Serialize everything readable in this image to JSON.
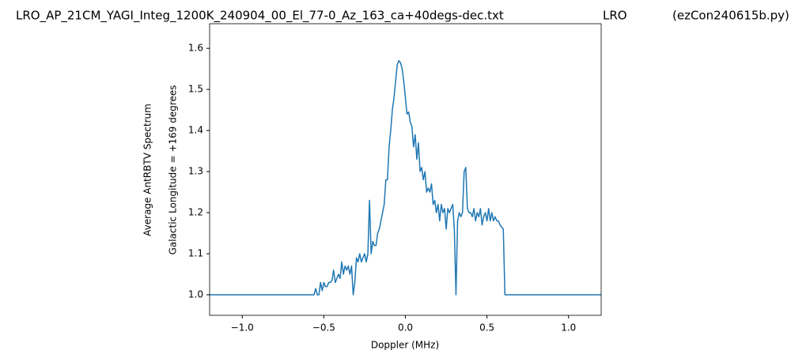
{
  "chart_data": {
    "type": "line",
    "title": "LRO_AP_21CM_YAGI_Integ_1200K_240904_00_El_77-0_Az_163_ca+40degs-dec.txt",
    "title_middle": "LRO",
    "title_right": "(ezCon240615b.py)",
    "xlabel": "Doppler (MHz)",
    "ylabel": [
      "Average AntRBTV Spectrum",
      "Galactic Longitude = +169 degrees"
    ],
    "xlim": [
      -1.2,
      1.2
    ],
    "ylim": [
      0.95,
      1.66
    ],
    "xticks": [
      {
        "value": -1,
        "label": "−1.0"
      },
      {
        "value": -0.5,
        "label": "−0.5"
      },
      {
        "value": 0,
        "label": "0.0"
      },
      0.5,
      {
        "value": 1,
        "label": "1.0"
      }
    ],
    "yticks": [
      {
        "value": 1,
        "label": "1.0"
      },
      1.1,
      1.2,
      1.3,
      1.4,
      1.5,
      1.6
    ],
    "grid": false,
    "x": [
      -1.2,
      -0.56,
      -0.55,
      -0.54,
      -0.53,
      -0.52,
      -0.51,
      -0.5,
      -0.49,
      -0.48,
      -0.47,
      -0.46,
      -0.45,
      -0.44,
      -0.43,
      -0.42,
      -0.41,
      -0.4,
      -0.39,
      -0.38,
      -0.37,
      -0.36,
      -0.35,
      -0.34,
      -0.33,
      -0.32,
      -0.31,
      -0.3,
      -0.29,
      -0.28,
      -0.27,
      -0.26,
      -0.25,
      -0.24,
      -0.23,
      -0.22,
      -0.21,
      -0.2,
      -0.19,
      -0.18,
      -0.17,
      -0.16,
      -0.15,
      -0.14,
      -0.13,
      -0.12,
      -0.11,
      -0.1,
      -0.09,
      -0.08,
      -0.07,
      -0.06,
      -0.05,
      -0.04,
      -0.03,
      -0.02,
      -0.01,
      0,
      0.01,
      0.02,
      0.03,
      0.04,
      0.05,
      0.06,
      0.07,
      0.08,
      0.09,
      0.1,
      0.11,
      0.12,
      0.13,
      0.14,
      0.15,
      0.16,
      0.17,
      0.18,
      0.19,
      0.2,
      0.21,
      0.22,
      0.23,
      0.24,
      0.25,
      0.26,
      0.27,
      0.28,
      0.29,
      0.3,
      0.31,
      0.32,
      0.33,
      0.34,
      0.35,
      0.36,
      0.37,
      0.38,
      0.39,
      0.4,
      0.41,
      0.42,
      0.43,
      0.44,
      0.45,
      0.46,
      0.47,
      0.48,
      0.49,
      0.5,
      0.51,
      0.52,
      0.53,
      0.54,
      0.55,
      0.56,
      0.57,
      0.58,
      0.59,
      0.6,
      0.61,
      1.2
    ],
    "series": [
      {
        "color": "#1f77b4",
        "values": [
          1,
          1,
          1.015,
          1,
          1,
          1.03,
          1.01,
          1.03,
          1.02,
          1.02,
          1.03,
          1.03,
          1.035,
          1.06,
          1.03,
          1.04,
          1.05,
          1.04,
          1.08,
          1.05,
          1.07,
          1.06,
          1.07,
          1.05,
          1.07,
          1,
          1.03,
          1.09,
          1.08,
          1.1,
          1.08,
          1.09,
          1.1,
          1.08,
          1.1,
          1.23,
          1.1,
          1.13,
          1.12,
          1.12,
          1.15,
          1.16,
          1.18,
          1.2,
          1.22,
          1.28,
          1.28,
          1.36,
          1.4,
          1.45,
          1.48,
          1.52,
          1.56,
          1.57,
          1.565,
          1.55,
          1.52,
          1.48,
          1.44,
          1.445,
          1.42,
          1.41,
          1.36,
          1.39,
          1.33,
          1.37,
          1.3,
          1.31,
          1.28,
          1.3,
          1.25,
          1.26,
          1.25,
          1.27,
          1.22,
          1.23,
          1.2,
          1.22,
          1.18,
          1.22,
          1.2,
          1.21,
          1.16,
          1.21,
          1.2,
          1.21,
          1.22,
          1.16,
          1,
          1.18,
          1.2,
          1.19,
          1.2,
          1.3,
          1.31,
          1.21,
          1.2,
          1.2,
          1.19,
          1.21,
          1.18,
          1.2,
          1.19,
          1.21,
          1.17,
          1.19,
          1.2,
          1.18,
          1.21,
          1.18,
          1.2,
          1.18,
          1.19,
          1.18,
          1.18,
          1.17,
          1.165,
          1.16,
          1,
          1
        ]
      }
    ]
  }
}
